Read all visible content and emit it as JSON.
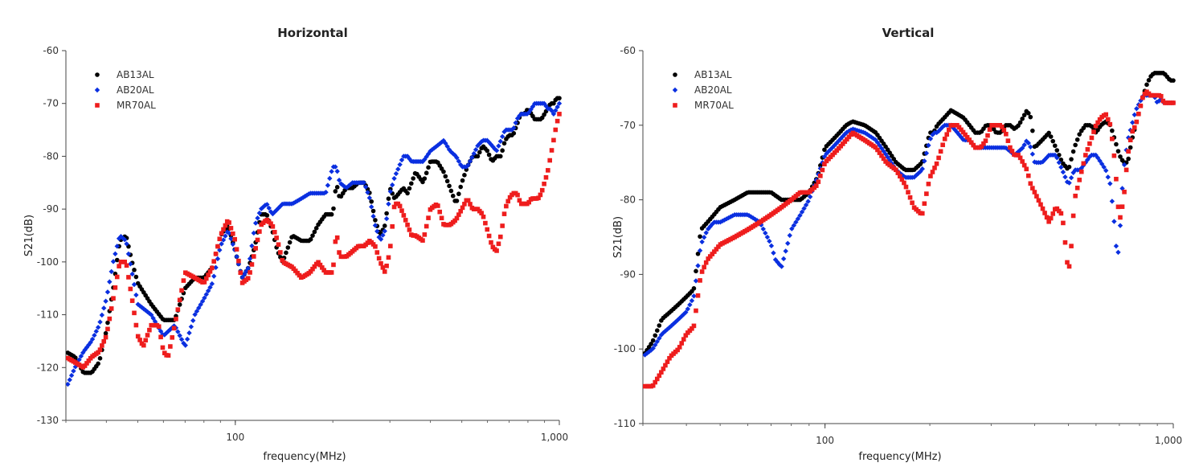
{
  "chart_data": [
    {
      "type": "scatter",
      "title": "Horizontal",
      "xlabel": "frequency(MHz)",
      "ylabel": "S21(dB)",
      "xscale": "log",
      "xlim": [
        30,
        1000
      ],
      "ylim": [
        -130,
        -60
      ],
      "xticks": [
        100,
        1000
      ],
      "xtick_labels": [
        "100",
        "1,000"
      ],
      "yticks": [
        -60,
        -70,
        -80,
        -90,
        -100,
        -110,
        -120,
        -130
      ],
      "legend_position": "top-left",
      "series": [
        {
          "name": "AB13AL",
          "color": "#000000",
          "marker": "circle",
          "x": [
            30,
            32,
            34,
            36,
            38,
            40,
            42,
            44,
            46,
            48,
            50,
            55,
            60,
            65,
            70,
            75,
            80,
            85,
            90,
            95,
            100,
            105,
            110,
            115,
            120,
            125,
            130,
            135,
            140,
            150,
            160,
            170,
            180,
            190,
            200,
            205,
            210,
            220,
            230,
            240,
            250,
            260,
            270,
            280,
            290,
            300,
            310,
            320,
            330,
            340,
            350,
            360,
            380,
            400,
            420,
            440,
            460,
            480,
            500,
            520,
            540,
            560,
            580,
            600,
            620,
            640,
            660,
            680,
            700,
            720,
            740,
            760,
            780,
            800,
            820,
            840,
            860,
            880,
            900,
            920,
            940,
            960,
            980,
            1000
          ],
          "y": [
            -117,
            -118,
            -121,
            -121,
            -119,
            -113,
            -105,
            -96,
            -95,
            -100,
            -104,
            -108,
            -111,
            -111,
            -105,
            -103,
            -103,
            -101,
            -95,
            -93,
            -98,
            -103,
            -101,
            -97,
            -91,
            -91,
            -94,
            -98,
            -100,
            -95,
            -96,
            -96,
            -93,
            -91,
            -91,
            -85,
            -88,
            -86,
            -86,
            -85,
            -85,
            -87,
            -92,
            -95,
            -93,
            -86,
            -88,
            -87,
            -86,
            -87,
            -85,
            -83,
            -85,
            -81,
            -81,
            -83,
            -86,
            -89,
            -85,
            -82,
            -80,
            -80,
            -78,
            -79,
            -81,
            -80,
            -80,
            -77,
            -76,
            -76,
            -74,
            -72,
            -72,
            -71,
            -72,
            -73,
            -73,
            -73,
            -72,
            -71,
            -70,
            -70,
            -69,
            -69
          ]
        },
        {
          "name": "AB20AL",
          "color": "#0a2fe0",
          "marker": "diamond",
          "x": [
            30,
            32,
            34,
            36,
            38,
            40,
            42,
            44,
            46,
            48,
            50,
            55,
            60,
            65,
            70,
            75,
            80,
            85,
            90,
            95,
            100,
            105,
            110,
            115,
            120,
            125,
            130,
            135,
            140,
            150,
            160,
            170,
            180,
            190,
            200,
            205,
            210,
            220,
            230,
            240,
            250,
            260,
            270,
            280,
            290,
            300,
            310,
            320,
            330,
            340,
            350,
            360,
            380,
            400,
            420,
            440,
            460,
            480,
            500,
            520,
            540,
            560,
            580,
            600,
            620,
            640,
            660,
            680,
            700,
            720,
            740,
            760,
            780,
            800,
            820,
            840,
            860,
            880,
            900,
            920,
            940,
            960,
            980,
            1000
          ],
          "y": [
            -124,
            -120,
            -117,
            -115,
            -112,
            -107,
            -100,
            -95,
            -96,
            -102,
            -108,
            -110,
            -114,
            -112,
            -116,
            -110,
            -107,
            -104,
            -97,
            -94,
            -98,
            -103,
            -101,
            -93,
            -90,
            -89,
            -91,
            -90,
            -89,
            -89,
            -88,
            -87,
            -87,
            -87,
            -82,
            -82,
            -85,
            -86,
            -85,
            -85,
            -85,
            -88,
            -93,
            -96,
            -94,
            -87,
            -84,
            -82,
            -80,
            -80,
            -81,
            -81,
            -81,
            -79,
            -78,
            -77,
            -79,
            -80,
            -82,
            -82,
            -80,
            -78,
            -77,
            -77,
            -78,
            -79,
            -77,
            -75,
            -75,
            -75,
            -73,
            -72,
            -72,
            -72,
            -71,
            -70,
            -70,
            -70,
            -70,
            -71,
            -71,
            -72,
            -71,
            -70
          ]
        },
        {
          "name": "MR70AL",
          "color": "#ee1d1d",
          "marker": "square",
          "x": [
            30,
            32,
            34,
            36,
            38,
            40,
            42,
            44,
            46,
            48,
            50,
            52,
            55,
            58,
            60,
            62,
            64,
            66,
            68,
            70,
            75,
            80,
            85,
            90,
            95,
            100,
            105,
            110,
            115,
            120,
            125,
            130,
            135,
            140,
            150,
            160,
            170,
            180,
            190,
            200,
            205,
            210,
            220,
            230,
            240,
            250,
            260,
            270,
            280,
            290,
            300,
            310,
            320,
            330,
            340,
            350,
            360,
            380,
            400,
            420,
            440,
            460,
            480,
            500,
            520,
            540,
            560,
            580,
            600,
            620,
            640,
            660,
            680,
            700,
            720,
            740,
            760,
            780,
            800,
            820,
            840,
            860,
            880,
            900,
            920,
            940,
            960,
            980,
            1000
          ],
          "y": [
            -118,
            -119,
            -120,
            -118,
            -117,
            -114,
            -107,
            -100,
            -100,
            -107,
            -114,
            -116,
            -112,
            -112,
            -117,
            -118,
            -114,
            -110,
            -106,
            -102,
            -103,
            -104,
            -101,
            -95,
            -92,
            -96,
            -104,
            -103,
            -98,
            -93,
            -92,
            -93,
            -96,
            -100,
            -101,
            -103,
            -102,
            -100,
            -102,
            -102,
            -94,
            -99,
            -99,
            -98,
            -97,
            -97,
            -96,
            -97,
            -100,
            -102,
            -98,
            -89,
            -89,
            -91,
            -93,
            -95,
            -95,
            -96,
            -90,
            -89,
            -93,
            -93,
            -92,
            -90,
            -88,
            -90,
            -90,
            -91,
            -94,
            -97,
            -98,
            -95,
            -90,
            -88,
            -87,
            -87,
            -89,
            -89,
            -89,
            -88,
            -88,
            -88,
            -87,
            -85,
            -83,
            -80,
            -77,
            -74,
            -72
          ]
        }
      ]
    },
    {
      "type": "scatter",
      "title": "Vertical",
      "xlabel": "frequency(MHz)",
      "ylabel": "S21(dB)",
      "xscale": "log",
      "xlim": [
        30,
        1000
      ],
      "ylim": [
        -110,
        -60
      ],
      "xticks": [
        100,
        1000
      ],
      "xtick_labels": [
        "100",
        "1,000"
      ],
      "yticks": [
        -60,
        -70,
        -80,
        -90,
        -100,
        -110
      ],
      "legend_position": "top-left",
      "series": [
        {
          "name": "AB13AL",
          "color": "#000000",
          "marker": "circle",
          "x": [
            30,
            32,
            34,
            36,
            38,
            40,
            42,
            44,
            46,
            48,
            50,
            55,
            60,
            65,
            70,
            75,
            80,
            85,
            90,
            95,
            100,
            105,
            110,
            115,
            120,
            130,
            140,
            150,
            160,
            170,
            180,
            190,
            200,
            205,
            210,
            220,
            230,
            240,
            250,
            260,
            270,
            280,
            290,
            300,
            310,
            320,
            330,
            340,
            350,
            360,
            370,
            380,
            390,
            400,
            420,
            440,
            460,
            480,
            500,
            520,
            540,
            560,
            580,
            600,
            620,
            640,
            660,
            680,
            700,
            720,
            740,
            760,
            780,
            800,
            820,
            840,
            860,
            880,
            900,
            920,
            940,
            960,
            980,
            1000
          ],
          "y": [
            -101,
            -99,
            -96,
            -95,
            -94,
            -93,
            -92,
            -84,
            -83,
            -82,
            -81,
            -80,
            -79,
            -79,
            -79,
            -80,
            -80,
            -80,
            -79,
            -77,
            -73,
            -72,
            -71,
            -70,
            -69.5,
            -70,
            -71,
            -73,
            -75,
            -76,
            -76,
            -75,
            -71,
            -71,
            -70,
            -69,
            -68,
            -68.5,
            -69,
            -70,
            -71,
            -71,
            -70,
            -70,
            -71,
            -71,
            -70,
            -70,
            -70.5,
            -70,
            -69,
            -68,
            -69,
            -73,
            -72,
            -71,
            -73,
            -75,
            -76,
            -73,
            -71,
            -70,
            -70,
            -71,
            -70,
            -69.5,
            -70,
            -72,
            -74,
            -75,
            -75,
            -72,
            -70,
            -68,
            -66,
            -64.5,
            -63.5,
            -63,
            -63,
            -63,
            -63,
            -63.5,
            -64,
            -64
          ]
        },
        {
          "name": "AB20AL",
          "color": "#0a2fe0",
          "marker": "diamond",
          "x": [
            30,
            32,
            34,
            36,
            38,
            40,
            42,
            44,
            46,
            48,
            50,
            55,
            60,
            65,
            70,
            72,
            75,
            78,
            80,
            85,
            90,
            95,
            100,
            105,
            110,
            115,
            120,
            130,
            140,
            150,
            160,
            170,
            180,
            190,
            200,
            205,
            210,
            220,
            230,
            240,
            250,
            260,
            270,
            280,
            290,
            300,
            310,
            320,
            330,
            340,
            350,
            360,
            370,
            380,
            390,
            400,
            420,
            440,
            460,
            480,
            500,
            520,
            540,
            560,
            580,
            600,
            620,
            640,
            660,
            680,
            690,
            700,
            710,
            720,
            740,
            760,
            780,
            800,
            820,
            840,
            860,
            880,
            900,
            920,
            940,
            960,
            980,
            1000
          ],
          "y": [
            -101,
            -100,
            -98,
            -97,
            -96,
            -95,
            -93,
            -86,
            -84,
            -83,
            -83,
            -82,
            -82,
            -83,
            -86,
            -88,
            -89,
            -86,
            -84,
            -82,
            -80,
            -77,
            -74,
            -73,
            -72,
            -71,
            -70.5,
            -71,
            -72,
            -74,
            -76,
            -77,
            -77,
            -76,
            -72,
            -71,
            -71,
            -70,
            -70,
            -71,
            -72,
            -72,
            -73,
            -73,
            -73,
            -73,
            -73,
            -73,
            -73,
            -73.5,
            -74,
            -73.5,
            -73,
            -72,
            -73,
            -75,
            -75,
            -74,
            -74,
            -76,
            -78,
            -76,
            -76,
            -75,
            -74,
            -74,
            -75,
            -76,
            -78,
            -84,
            -88,
            -86,
            -80,
            -76,
            -72,
            -70,
            -68,
            -67,
            -66,
            -66,
            -66,
            -66,
            -67,
            -66.5,
            -67,
            -67,
            -67,
            -67
          ]
        },
        {
          "name": "MR70AL",
          "color": "#ee1d1d",
          "marker": "square",
          "x": [
            30,
            32,
            34,
            36,
            38,
            40,
            42,
            44,
            46,
            48,
            50,
            55,
            60,
            65,
            70,
            75,
            80,
            85,
            90,
            95,
            100,
            105,
            110,
            115,
            120,
            130,
            140,
            150,
            160,
            170,
            180,
            190,
            200,
            205,
            210,
            220,
            230,
            240,
            250,
            260,
            270,
            280,
            290,
            300,
            310,
            320,
            330,
            340,
            350,
            360,
            370,
            380,
            390,
            400,
            420,
            440,
            460,
            480,
            490,
            500,
            510,
            520,
            540,
            560,
            580,
            600,
            620,
            640,
            660,
            680,
            700,
            720,
            740,
            760,
            780,
            800,
            820,
            840,
            860,
            880,
            900,
            920,
            940,
            960,
            980,
            1000
          ],
          "y": [
            -105,
            -105,
            -103,
            -101,
            -100,
            -98,
            -97,
            -90,
            -88,
            -87,
            -86,
            -85,
            -84,
            -83,
            -82,
            -81,
            -80,
            -79,
            -79,
            -78,
            -75,
            -74,
            -73,
            -72,
            -71,
            -72,
            -73,
            -75,
            -76,
            -78,
            -81,
            -82,
            -77,
            -76,
            -75,
            -72,
            -70,
            -70,
            -71,
            -72,
            -73,
            -73,
            -72,
            -70,
            -70,
            -70,
            -71,
            -73,
            -74,
            -74,
            -75,
            -76,
            -78,
            -79,
            -81,
            -83,
            -81,
            -82,
            -86,
            -90,
            -86,
            -80,
            -77,
            -74,
            -72,
            -70,
            -69,
            -68.5,
            -70,
            -75,
            -83,
            -80,
            -74,
            -71,
            -70,
            -68,
            -66,
            -65.5,
            -66,
            -66,
            -66,
            -66,
            -67,
            -67,
            -67,
            -67
          ]
        }
      ]
    }
  ]
}
